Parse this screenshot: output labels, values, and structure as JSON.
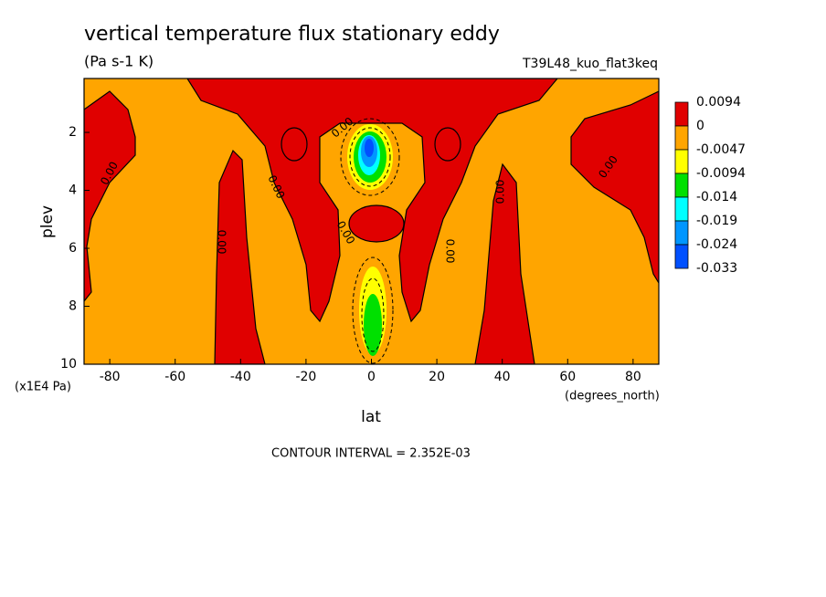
{
  "chart_data": {
    "type": "contour",
    "title": "vertical temperature flux stationary eddy",
    "subtitle": "(Pa s-1 K)",
    "dataset": "T39L48_kuo_flat3keq",
    "x_label": "lat",
    "x_units": "(degrees_north)",
    "y_label": "plev",
    "y_units": "(x1E4 Pa)",
    "xlim": [
      -87.86,
      87.86
    ],
    "xticks": [
      -80,
      -60,
      -40,
      -20,
      0,
      20,
      40,
      60,
      80
    ],
    "ylim": [
      10,
      0.14
    ],
    "yticks": [
      2,
      4,
      6,
      8,
      10
    ],
    "levels": [
      0.0094,
      0,
      -0.0047,
      -0.0094,
      -0.014,
      -0.019,
      -0.024,
      -0.033
    ],
    "colors": [
      "#e00000",
      "#ffa500",
      "#ffff00",
      "#00e000",
      "#00ffff",
      "#0096ff",
      "#0050ff"
    ],
    "contour_labels": [
      "0.00",
      "0.00",
      "0.00",
      "0.00",
      "0.00",
      "0.00",
      "0.00",
      "0.00",
      "0.00"
    ],
    "footnote": "CONTOUR INTERVAL = 2.352E-03"
  }
}
